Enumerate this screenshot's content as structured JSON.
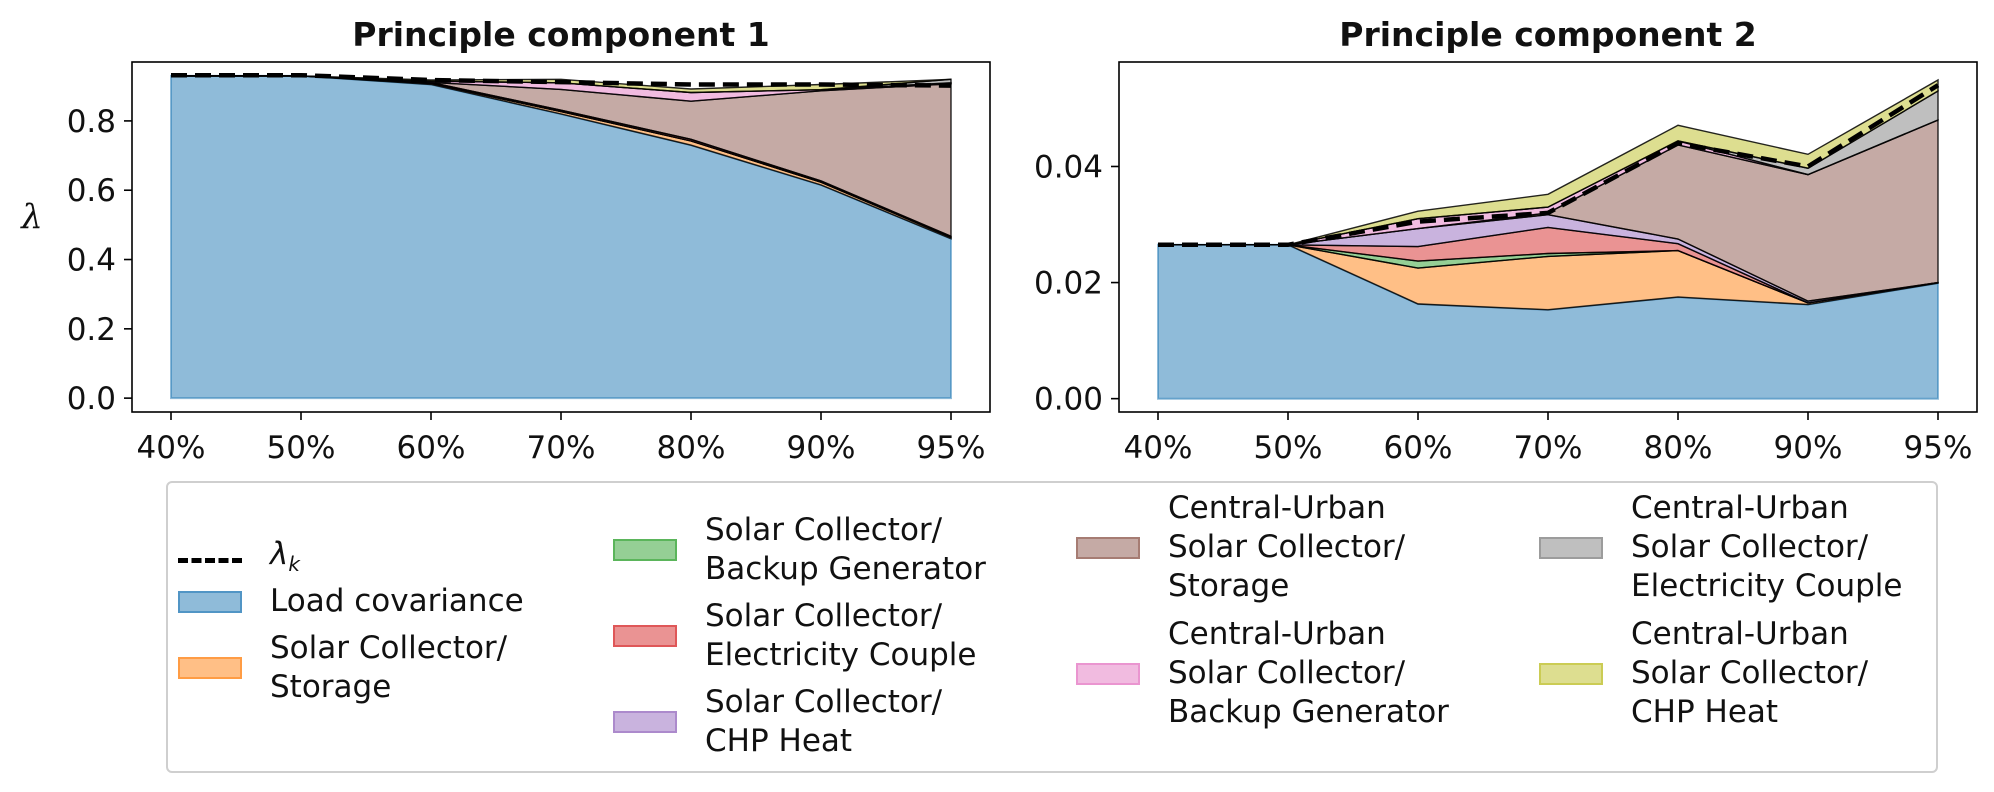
{
  "chart_data": [
    {
      "type": "area",
      "title": "Principle component 1",
      "ylabel": "λ",
      "x": [
        "40%",
        "50%",
        "60%",
        "70%",
        "80%",
        "90%",
        "95%"
      ],
      "ylim": [
        -0.04,
        0.97
      ],
      "yticks": [
        "0.0",
        "0.2",
        "0.4",
        "0.6",
        "0.8"
      ],
      "stacked": true,
      "series": [
        {
          "name": "Load covariance",
          "values": [
            0.93,
            0.93,
            0.905,
            0.82,
            0.73,
            0.615,
            0.46
          ]
        },
        {
          "name": "Solar Collector/\nStorage",
          "values": [
            0.0,
            0.0,
            0.003,
            0.007,
            0.012,
            0.008,
            0.004
          ]
        },
        {
          "name": "Solar Collector/\nBackup Generator",
          "values": [
            0.0,
            0.0,
            0.0,
            0.0,
            0.0,
            0.0,
            0.0
          ]
        },
        {
          "name": "Solar Collector/\nElectricity Couple",
          "values": [
            0.0,
            0.0,
            0.003,
            0.004,
            0.005,
            0.004,
            0.003
          ]
        },
        {
          "name": "Solar Collector/\nCHP Heat",
          "values": [
            0.0,
            0.0,
            0.0,
            0.0,
            0.0,
            0.0,
            0.0
          ]
        },
        {
          "name": "Central-Urban\nSolar Collector/\nStorage",
          "values": [
            0.0,
            0.0,
            0.0,
            0.06,
            0.11,
            0.26,
            0.44
          ]
        },
        {
          "name": "Central-Urban\nSolar Collector/\nBackup Generator",
          "values": [
            0.0,
            0.0,
            0.004,
            0.019,
            0.025,
            0.003,
            0.003
          ]
        },
        {
          "name": "Central-Urban\nSolar Collector/\nElectricity Couple",
          "values": [
            0.0,
            0.0,
            0.0,
            0.0,
            0.0,
            0.0,
            0.01
          ]
        },
        {
          "name": "Central-Urban\nSolar Collector/\nCHP Heat",
          "values": [
            0.0,
            0.0,
            0.003,
            0.01,
            0.01,
            0.015,
            0.0
          ]
        }
      ],
      "line": {
        "name": "λk",
        "values": [
          0.932,
          0.932,
          0.918,
          0.912,
          0.905,
          0.905,
          0.902
        ]
      }
    },
    {
      "type": "area",
      "title": "Principle component 2",
      "x": [
        "40%",
        "50%",
        "60%",
        "70%",
        "80%",
        "90%",
        "95%"
      ],
      "ylim": [
        -0.0023,
        0.058
      ],
      "yticks": [
        "0.00",
        "0.02",
        "0.04"
      ],
      "stacked": true,
      "series": [
        {
          "name": "Load covariance",
          "values": [
            0.0265,
            0.0265,
            0.0163,
            0.0153,
            0.0175,
            0.0162,
            0.0199
          ]
        },
        {
          "name": "Solar Collector/\nStorage",
          "values": [
            0.0,
            0.0,
            0.0062,
            0.0092,
            0.008,
            0.0003,
            0.0001
          ]
        },
        {
          "name": "Solar Collector/\nBackup Generator",
          "values": [
            0.0,
            0.0,
            0.0012,
            0.0005,
            0.0,
            0.0,
            0.0
          ]
        },
        {
          "name": "Solar Collector/\nElectricity Couple",
          "values": [
            0.0,
            0.0,
            0.0025,
            0.0045,
            0.0012,
            0.0,
            0.0
          ]
        },
        {
          "name": "Solar Collector/\nCHP Heat",
          "values": [
            0.0,
            0.0,
            0.0031,
            0.0022,
            0.0008,
            0.0003,
            0.0
          ]
        },
        {
          "name": "Central-Urban\nSolar Collector/\nStorage",
          "values": [
            0.0,
            0.0,
            0.0,
            0.0003,
            0.0162,
            0.0218,
            0.028
          ]
        },
        {
          "name": "Central-Urban\nSolar Collector/\nBackup Generator",
          "values": [
            0.0,
            0.0,
            0.0017,
            0.001,
            0.0007,
            0.0,
            0.0
          ]
        },
        {
          "name": "Central-Urban\nSolar Collector/\nElectricity Couple",
          "values": [
            0.0,
            0.0,
            0.0,
            0.0,
            0.0,
            0.0011,
            0.005
          ]
        },
        {
          "name": "Central-Urban\nSolar Collector/\nCHP Heat",
          "values": [
            0.0,
            0.0,
            0.0013,
            0.0022,
            0.0027,
            0.0024,
            0.0019
          ]
        }
      ],
      "line": {
        "name": "λk",
        "values": [
          0.0265,
          0.0265,
          0.0305,
          0.032,
          0.044,
          0.04,
          0.054
        ]
      }
    }
  ],
  "colors": [
    "#1f77b4",
    "#ff7f0e",
    "#2ca02c",
    "#d62728",
    "#9467bd",
    "#8c564b",
    "#e377c2",
    "#7f7f7f",
    "#bcbd22"
  ],
  "legend": {
    "lambda_label": "λ",
    "lambda_sub": "k",
    "items": [
      {
        "label": "Load covariance",
        "color": "#1f77b4"
      },
      {
        "label": "Solar Collector/\nStorage",
        "color": "#ff7f0e"
      },
      {
        "label": "Solar Collector/\nBackup Generator",
        "color": "#2ca02c"
      },
      {
        "label": "Solar Collector/\nElectricity Couple",
        "color": "#d62728"
      },
      {
        "label": "Solar Collector/\nCHP Heat",
        "color": "#9467bd"
      },
      {
        "label": "Central-Urban\nSolar Collector/\nStorage",
        "color": "#8c564b"
      },
      {
        "label": "Central-Urban\nSolar Collector/\nBackup Generator",
        "color": "#e377c2"
      },
      {
        "label": "Central-Urban\nSolar Collector/\nElectricity Couple",
        "color": "#7f7f7f"
      },
      {
        "label": "Central-Urban\nSolar Collector/\nCHP Heat",
        "color": "#bcbd22"
      }
    ]
  }
}
